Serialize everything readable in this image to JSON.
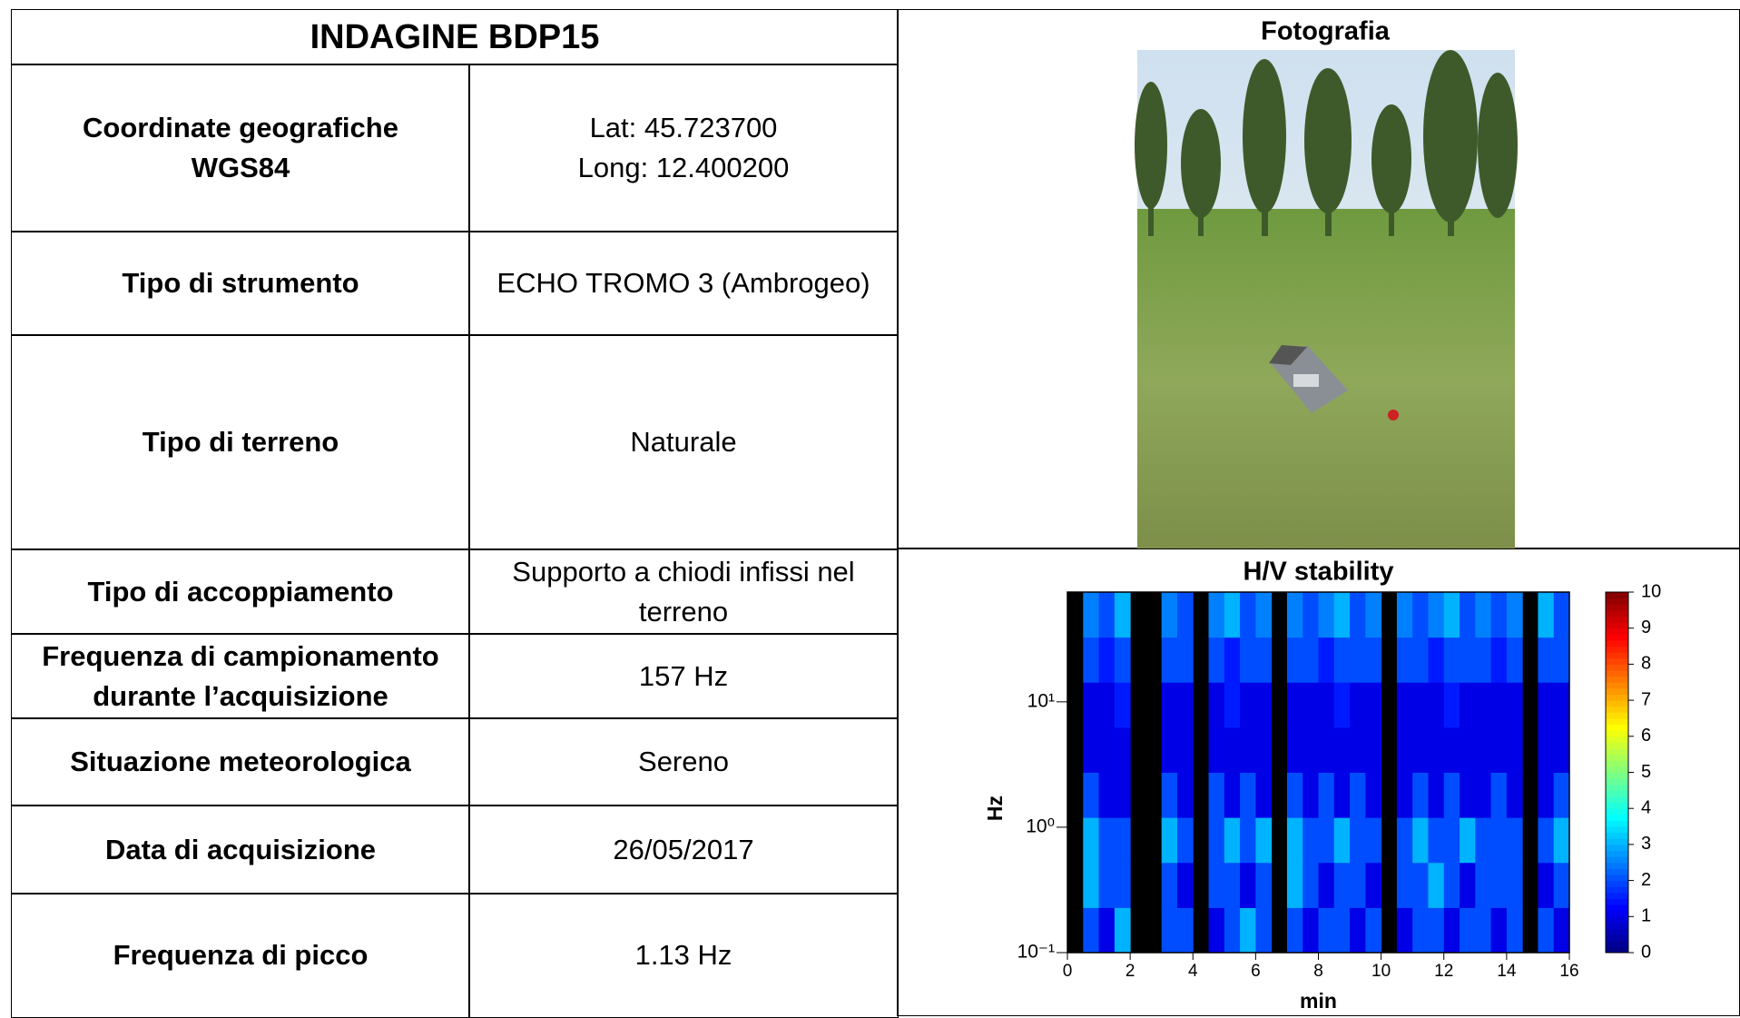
{
  "table": {
    "title": "INDAGINE BDP15",
    "rows": [
      {
        "label": [
          "Coordinate geografiche",
          "WGS84"
        ],
        "value": [
          "Lat: 45.723700",
          "Long: 12.400200"
        ]
      },
      {
        "label": [
          "Tipo di strumento"
        ],
        "value": [
          "ECHO TROMO 3 (Ambrogeo)"
        ]
      },
      {
        "label": [
          "Tipo di terreno"
        ],
        "value": [
          "Naturale"
        ]
      },
      {
        "label": [
          "Tipo di accoppiamento"
        ],
        "value": [
          "Supporto a chiodi infissi nel",
          "terreno"
        ]
      },
      {
        "label": [
          "Frequenza di campionamento",
          "durante l’acquisizione"
        ],
        "value": [
          "157 Hz"
        ]
      },
      {
        "label": [
          "Situazione meteorologica"
        ],
        "value": [
          "Sereno"
        ]
      },
      {
        "label": [
          "Data di acquisizione"
        ],
        "value": [
          "26/05/2017"
        ]
      },
      {
        "label": [
          "Frequenza di picco"
        ],
        "value": [
          "1.13 Hz"
        ]
      }
    ]
  },
  "photo": {
    "title": "Fotografia"
  },
  "chart_data": {
    "type": "heatmap",
    "title": "H/V stability",
    "x_label": "min",
    "y_label": "Hz",
    "xlim": [
      0,
      16
    ],
    "xticks": [
      0,
      2,
      4,
      6,
      8,
      10,
      12,
      14,
      16
    ],
    "ylim": [
      0.1,
      75
    ],
    "log_y": true,
    "yticks": [
      {
        "value": 0.1,
        "label": "10⁻¹"
      },
      {
        "value": 1,
        "label": "10⁰"
      },
      {
        "value": 10,
        "label": "10¹"
      }
    ],
    "colormap": "jet",
    "colorbar_lim": [
      0,
      10
    ],
    "colorbar_ticks": [
      0,
      1,
      2,
      3,
      4,
      5,
      6,
      7,
      8,
      9,
      10
    ],
    "values": [
      [
        null,
        2,
        1,
        3,
        null,
        null,
        2,
        2,
        null,
        1,
        2,
        3,
        2,
        null,
        2,
        1,
        2,
        2,
        1,
        2,
        null,
        1,
        2,
        2,
        1,
        2,
        2,
        1,
        2,
        null,
        2,
        1
      ],
      [
        null,
        3,
        2,
        2,
        null,
        null,
        2,
        1,
        null,
        2,
        2,
        1,
        2,
        null,
        3,
        2,
        1,
        2,
        2,
        1,
        null,
        2,
        2,
        3,
        2,
        1,
        2,
        2,
        2,
        null,
        1,
        2
      ],
      [
        null,
        3,
        2,
        2,
        null,
        null,
        3,
        2,
        null,
        2,
        3,
        2,
        3,
        null,
        3,
        2,
        2,
        3,
        2,
        2,
        null,
        2,
        3,
        2,
        2,
        3,
        2,
        2,
        2,
        null,
        2,
        3
      ],
      [
        null,
        2,
        1,
        1,
        null,
        null,
        2,
        1,
        null,
        2,
        1,
        2,
        1,
        null,
        2,
        1,
        2,
        1,
        2,
        1,
        null,
        1,
        2,
        1,
        2,
        1,
        1,
        2,
        1,
        null,
        1,
        2
      ],
      [
        null,
        1,
        1,
        1,
        null,
        null,
        1,
        1,
        null,
        1,
        1,
        1,
        1,
        null,
        1,
        1,
        1,
        1,
        1,
        1,
        null,
        1,
        1,
        1,
        1,
        1,
        1,
        1,
        1,
        null,
        1,
        1
      ],
      [
        null,
        1,
        1,
        1.5,
        null,
        null,
        1,
        1,
        null,
        1,
        1.5,
        1,
        1,
        null,
        1,
        1,
        1,
        1.5,
        1,
        1,
        null,
        1,
        1,
        1,
        1.5,
        1,
        1,
        1,
        1,
        null,
        1,
        1
      ],
      [
        null,
        2,
        1.5,
        2,
        null,
        null,
        2,
        2,
        null,
        2,
        1.5,
        2,
        2,
        null,
        2,
        2,
        1.5,
        2,
        2,
        2,
        null,
        2,
        2,
        1.5,
        2,
        2,
        2,
        1.5,
        2,
        null,
        2,
        2
      ],
      [
        null,
        2.5,
        2,
        3,
        null,
        null,
        2.5,
        2,
        null,
        2.5,
        3,
        2,
        2.5,
        null,
        2.5,
        2,
        2.5,
        3,
        2,
        2.5,
        null,
        2.5,
        2,
        2.5,
        3,
        2,
        2.5,
        2,
        2.5,
        null,
        3,
        2
      ]
    ]
  }
}
